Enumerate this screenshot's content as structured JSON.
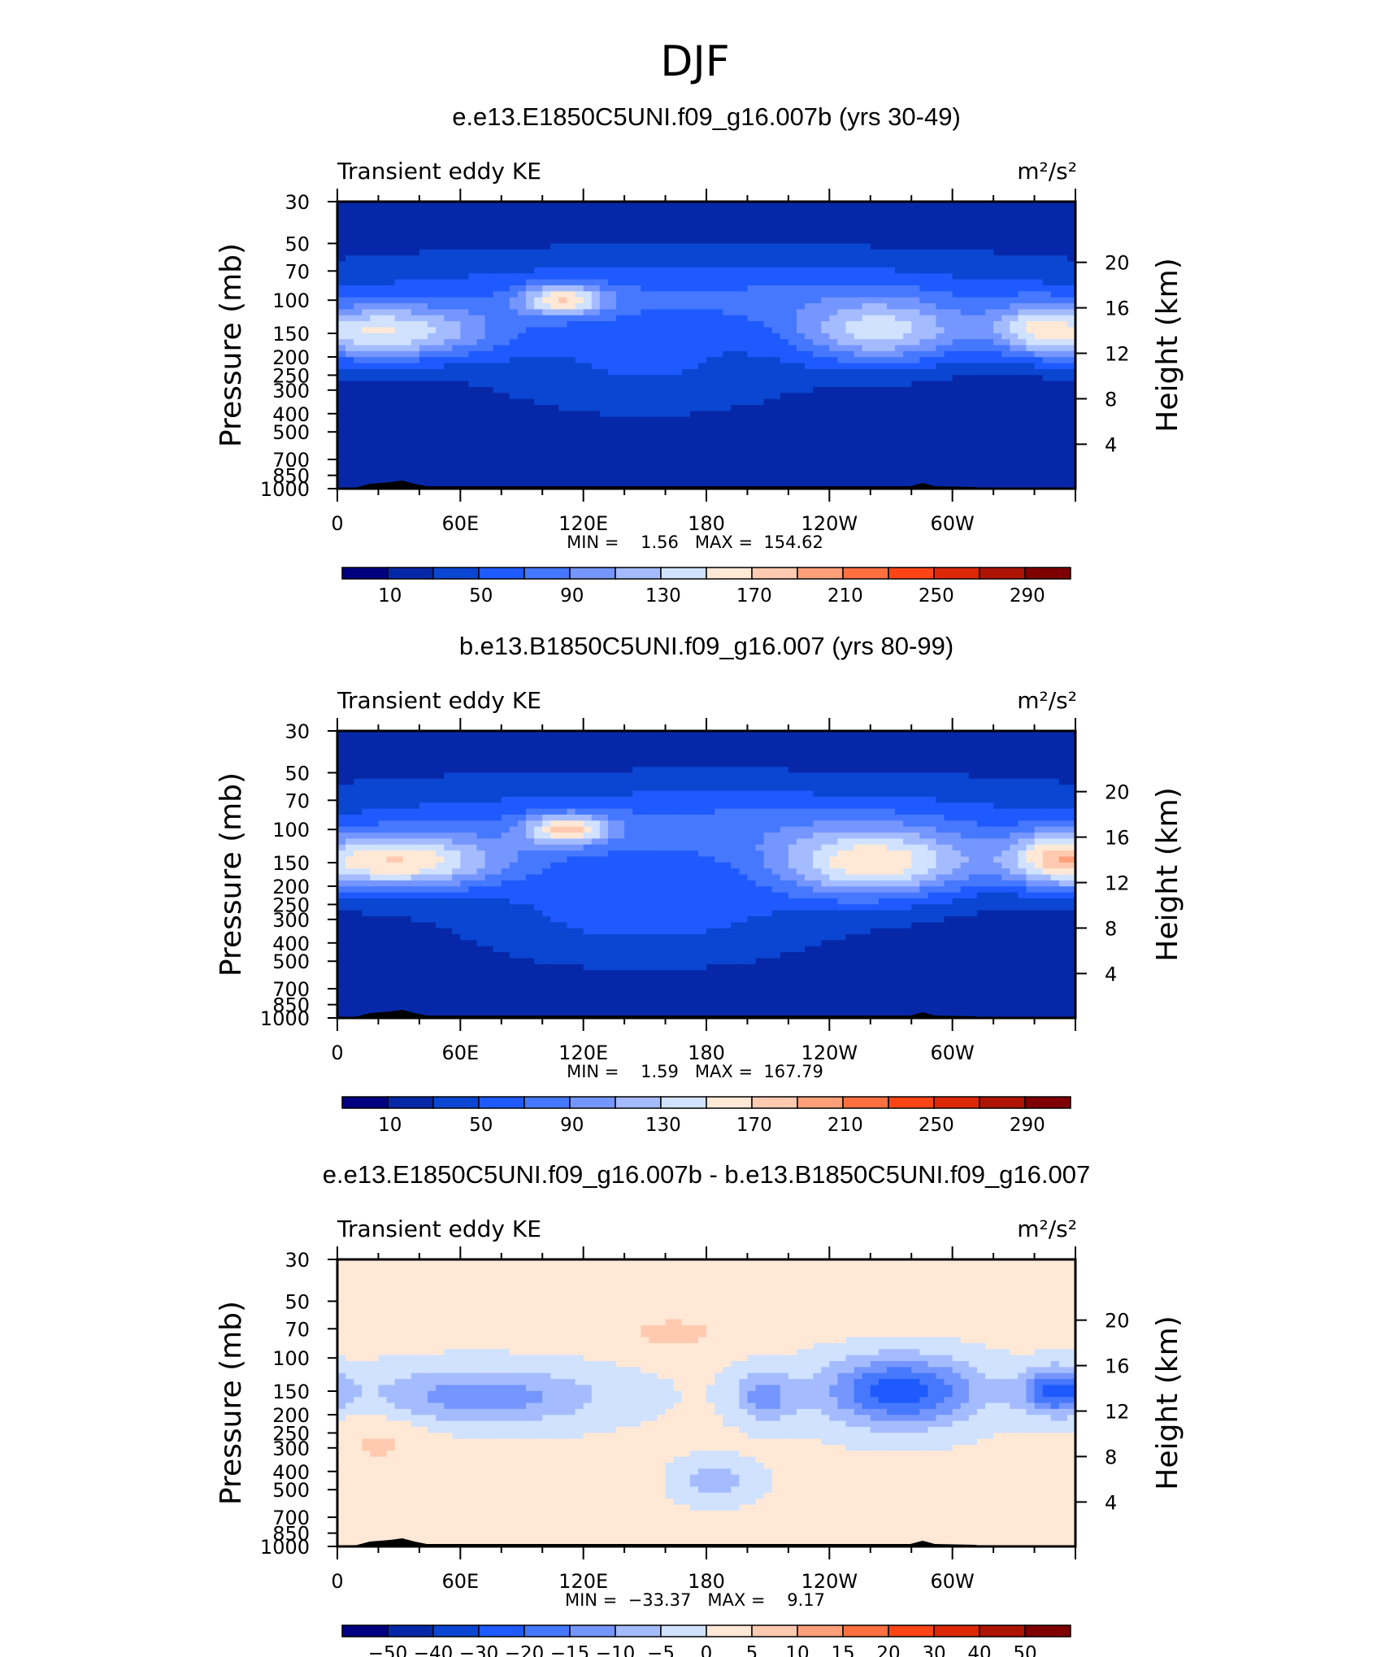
{
  "page_title": "DJF",
  "colors": {
    "abs_scale": [
      "#000080",
      "#0628a8",
      "#0a46d2",
      "#1e5aff",
      "#4678ff",
      "#7596ff",
      "#a4bcff",
      "#d0e2ff",
      "#ffe8d6",
      "#ffcab0",
      "#ffa07a",
      "#ff7040",
      "#ff4516",
      "#dd2808",
      "#ae1404",
      "#7f0000"
    ],
    "diff_scale": [
      "#000080",
      "#0628a8",
      "#0a46d2",
      "#1e5aff",
      "#4678ff",
      "#7596ff",
      "#a4bcff",
      "#d0e2ff",
      "#ffe8d6",
      "#ffcab0",
      "#ffa07a",
      "#ff7040",
      "#ff4516",
      "#dd2808",
      "#ae1404",
      "#7f0000"
    ],
    "topography": "#000000"
  },
  "chart_data": [
    {
      "type": "heatmap",
      "title": "e.e13.E1850C5UNI.f09_g16.007b (yrs 30-49)",
      "left_label": "Transient eddy KE",
      "units": "m²/s²",
      "ylabel": "Pressure (mb)",
      "ylabel_right": "Height (km)",
      "y_ticks": [
        "30",
        "50",
        "70",
        "100",
        "150",
        "200",
        "250",
        "300",
        "400",
        "500",
        "700",
        "850",
        "1000"
      ],
      "y_ticks_right": [
        "20",
        "16",
        "12",
        "8",
        "4"
      ],
      "x_ticks": [
        "0",
        "60E",
        "120E",
        "180",
        "120W",
        "60W"
      ],
      "xlim": [
        0,
        360
      ],
      "ylim": [
        1000,
        30
      ],
      "min_max": "MIN =    1.56   MAX =  154.62",
      "colorbar_labels": [
        "10",
        "50",
        "90",
        "130",
        "170",
        "210",
        "250",
        "290"
      ],
      "levels": [
        10,
        30,
        50,
        70,
        90,
        110,
        130,
        150,
        170,
        190,
        210,
        230,
        250,
        270,
        290
      ],
      "field": {
        "background": 20,
        "blobs": [
          {
            "lon": 180,
            "p": 95,
            "slon": 200,
            "sp": 0.5,
            "amp": 50
          },
          {
            "lon": 20,
            "p": 150,
            "slon": 55,
            "sp": 0.35,
            "amp": 120
          },
          {
            "lon": 380,
            "p": 150,
            "slon": 55,
            "sp": 0.35,
            "amp": 120
          },
          {
            "lon": 110,
            "p": 100,
            "slon": 20,
            "sp": 0.18,
            "amp": 105
          },
          {
            "lon": 265,
            "p": 150,
            "slon": 42,
            "sp": 0.4,
            "amp": 100
          },
          {
            "lon": 340,
            "p": 140,
            "slon": 20,
            "sp": 0.35,
            "amp": 50
          },
          {
            "lon": 150,
            "p": 230,
            "slon": 75,
            "sp": 0.55,
            "amp": 30
          }
        ]
      }
    },
    {
      "type": "heatmap",
      "title": "b.e13.B1850C5UNI.f09_g16.007 (yrs 80-99)",
      "left_label": "Transient eddy KE",
      "units": "m²/s²",
      "ylabel": "Pressure (mb)",
      "ylabel_right": "Height (km)",
      "y_ticks": [
        "30",
        "50",
        "70",
        "100",
        "150",
        "200",
        "250",
        "300",
        "400",
        "500",
        "700",
        "850",
        "1000"
      ],
      "y_ticks_right": [
        "20",
        "16",
        "12",
        "8",
        "4"
      ],
      "x_ticks": [
        "0",
        "60E",
        "120E",
        "180",
        "120W",
        "60W"
      ],
      "xlim": [
        0,
        360
      ],
      "ylim": [
        1000,
        30
      ],
      "min_max": "MIN =    1.59   MAX =  167.79",
      "colorbar_labels": [
        "10",
        "50",
        "90",
        "130",
        "170",
        "210",
        "250",
        "290"
      ],
      "levels": [
        10,
        30,
        50,
        70,
        90,
        110,
        130,
        150,
        170,
        190,
        210,
        230,
        250,
        270,
        290
      ],
      "field": {
        "background": 22,
        "blobs": [
          {
            "lon": 180,
            "p": 95,
            "slon": 200,
            "sp": 0.5,
            "amp": 52
          },
          {
            "lon": 25,
            "p": 150,
            "slon": 55,
            "sp": 0.35,
            "amp": 135
          },
          {
            "lon": 385,
            "p": 150,
            "slon": 55,
            "sp": 0.35,
            "amp": 135
          },
          {
            "lon": 112,
            "p": 100,
            "slon": 20,
            "sp": 0.18,
            "amp": 110
          },
          {
            "lon": 262,
            "p": 155,
            "slon": 48,
            "sp": 0.42,
            "amp": 125
          },
          {
            "lon": 350,
            "p": 140,
            "slon": 22,
            "sp": 0.35,
            "amp": 60
          },
          {
            "lon": 150,
            "p": 260,
            "slon": 80,
            "sp": 0.6,
            "amp": 40
          }
        ]
      }
    },
    {
      "type": "heatmap",
      "title": "e.e13.E1850C5UNI.f09_g16.007b - b.e13.B1850C5UNI.f09_g16.007",
      "left_label": "Transient eddy KE",
      "units": "m²/s²",
      "ylabel": "Pressure (mb)",
      "ylabel_right": "Height (km)",
      "y_ticks": [
        "30",
        "50",
        "70",
        "100",
        "150",
        "200",
        "250",
        "300",
        "400",
        "500",
        "700",
        "850",
        "1000"
      ],
      "y_ticks_right": [
        "20",
        "16",
        "12",
        "8",
        "4"
      ],
      "x_ticks": [
        "0",
        "60E",
        "120E",
        "180",
        "120W",
        "60W"
      ],
      "xlim": [
        0,
        360
      ],
      "ylim": [
        1000,
        30
      ],
      "min_max": "MIN =  −33.37   MAX =    9.17",
      "colorbar_labels": [
        "−50",
        "−40",
        "−30",
        "−20",
        "−15",
        "−10",
        "−5",
        "0",
        "5",
        "10",
        "15",
        "20",
        "30",
        "40",
        "50"
      ],
      "levels": [
        -50,
        -40,
        -30,
        -20,
        -15,
        -10,
        -5,
        0,
        5,
        10,
        15,
        20,
        30,
        40,
        50
      ],
      "field": {
        "background": 1,
        "blobs": [
          {
            "lon": 180,
            "p": 45,
            "slon": 260,
            "sp": 0.45,
            "amp": 3
          },
          {
            "lon": 165,
            "p": 75,
            "slon": 25,
            "sp": 0.18,
            "amp": 5
          },
          {
            "lon": 20,
            "p": 270,
            "slon": 25,
            "sp": 0.45,
            "amp": 5
          },
          {
            "lon": 70,
            "p": 160,
            "slon": 60,
            "sp": 0.35,
            "amp": -14
          },
          {
            "lon": 275,
            "p": 150,
            "slon": 38,
            "sp": 0.42,
            "amp": -24
          },
          {
            "lon": 208,
            "p": 160,
            "slon": 15,
            "sp": 0.3,
            "amp": -13
          },
          {
            "lon": 352,
            "p": 150,
            "slon": 18,
            "sp": 0.28,
            "amp": -24
          },
          {
            "lon": 185,
            "p": 450,
            "slon": 18,
            "sp": 0.25,
            "amp": -9
          },
          {
            "lon": 0,
            "p": 150,
            "slon": 10,
            "sp": 0.25,
            "amp": -7
          },
          {
            "lon": 75,
            "p": 480,
            "slon": 22,
            "sp": 0.5,
            "amp": 4
          },
          {
            "lon": 342,
            "p": 650,
            "slon": 10,
            "sp": 0.3,
            "amp": 3
          }
        ]
      }
    }
  ]
}
